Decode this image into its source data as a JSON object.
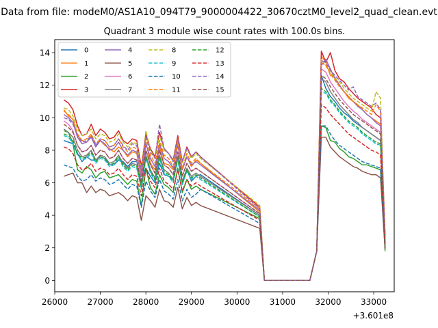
{
  "chart_data": {
    "type": "line",
    "suptitle": "Data from file: modeM0/AS1A10_094T79_9000004422_30670cztM0_level2_quad_clean.evt",
    "title": "Quadrant 3 module wise count rates with 100.0s bins.",
    "xlabel": "",
    "ylabel": "",
    "offset_text": "+3.601e8",
    "xlim": [
      26000,
      33450
    ],
    "ylim": [
      -0.7,
      14.8
    ],
    "xticks": [
      26000,
      27000,
      28000,
      29000,
      30000,
      31000,
      32000,
      33000
    ],
    "xtick_labels": [
      "26000",
      "27000",
      "28000",
      "29000",
      "30000",
      "31000",
      "32000",
      "33000"
    ],
    "yticks": [
      0,
      2,
      4,
      6,
      8,
      10,
      12,
      14
    ],
    "ytick_labels": [
      "0",
      "2",
      "4",
      "6",
      "8",
      "10",
      "12",
      "14"
    ],
    "legend_loc": "upper-left",
    "grid": false,
    "x_start": 26200,
    "x_step": 100,
    "gap": {
      "drop_from": 30500,
      "zero_start": 30600,
      "zero_end": 31650,
      "rise_to": 31850
    },
    "series": [
      {
        "name": "0",
        "color": "#1f77b4",
        "dashed": false,
        "pre": [
          8.6,
          8.5,
          8.4,
          7.8,
          7.3,
          7.6,
          7.4,
          7.4,
          7.6,
          7.5,
          7.1,
          7.1,
          7.4,
          7.3,
          7.0,
          7.3,
          7.3,
          6.1,
          6.9,
          6.4,
          6.0,
          7.2,
          6.5,
          6.4,
          6.2,
          7.6,
          5.9,
          6.8,
          6.1,
          6.4,
          6.5
        ],
        "pre_end": 4.0,
        "post": [
          12.6,
          11.8,
          11.3,
          11.0,
          10.6,
          10.3,
          10.1,
          9.8,
          9.6,
          9.4,
          9.2,
          9.0,
          8.8,
          8.6
        ],
        "post_end": 2.0
      },
      {
        "name": "1",
        "color": "#ff7f0e",
        "dashed": false,
        "pre": [
          10.5,
          10.1,
          9.9,
          8.9,
          8.6,
          8.5,
          8.9,
          8.3,
          8.6,
          8.3,
          8.1,
          7.9,
          8.2,
          8.0,
          7.6,
          7.9,
          7.8,
          6.4,
          8.5,
          7.2,
          6.8,
          8.2,
          7.2,
          7.1,
          6.8,
          8.4,
          6.8,
          7.6,
          7.0,
          7.4,
          7.2
        ],
        "pre_end": 4.2,
        "post": [
          13.8,
          13.4,
          12.6,
          12.5,
          12.0,
          11.6,
          11.2,
          11.0,
          10.8,
          10.5,
          10.2,
          10.0,
          9.8,
          9.6
        ],
        "post_end": 2.6
      },
      {
        "name": "2",
        "color": "#2ca02c",
        "dashed": false,
        "pre": [
          9.2,
          9.1,
          8.4,
          6.8,
          6.6,
          7.0,
          6.8,
          6.3,
          6.6,
          6.7,
          6.3,
          6.4,
          6.5,
          6.2,
          5.9,
          6.2,
          6.1,
          4.6,
          6.9,
          5.7,
          5.3,
          6.5,
          5.9,
          5.7,
          5.4,
          6.9,
          5.4,
          6.2,
          5.6,
          5.8,
          5.6
        ],
        "pre_end": 3.8,
        "post": [
          9.5,
          9.4,
          8.6,
          8.5,
          8.1,
          7.9,
          7.6,
          7.5,
          7.3,
          7.1,
          7.1,
          7.0,
          6.9,
          6.8
        ],
        "post_end": 1.8
      },
      {
        "name": "3",
        "color": "#d62728",
        "dashed": false,
        "pre": [
          11.1,
          10.9,
          10.5,
          9.5,
          8.9,
          9.0,
          9.6,
          8.9,
          9.3,
          9.1,
          8.7,
          8.8,
          9.2,
          8.6,
          8.4,
          8.7,
          8.6,
          7.0,
          9.0,
          8.1,
          7.6,
          9.1,
          8.1,
          7.8,
          7.4,
          8.9,
          7.3,
          8.2,
          7.6,
          7.9,
          7.6
        ],
        "pre_end": 4.5,
        "post": [
          14.1,
          13.4,
          14.0,
          12.9,
          12.4,
          12.2,
          11.8,
          11.5,
          11.2,
          11.0,
          10.8,
          10.6,
          10.2,
          10.0
        ],
        "post_end": 2.8
      },
      {
        "name": "4",
        "color": "#9467bd",
        "dashed": false,
        "pre": [
          10.2,
          10.0,
          9.7,
          8.8,
          8.4,
          8.5,
          8.8,
          8.2,
          8.6,
          8.4,
          8.0,
          8.1,
          8.5,
          8.0,
          7.7,
          8.0,
          7.9,
          6.4,
          8.4,
          7.5,
          7.0,
          8.4,
          7.5,
          7.3,
          6.9,
          8.3,
          6.8,
          7.6,
          7.1,
          7.3,
          7.1
        ],
        "pre_end": 4.3,
        "post": [
          13.2,
          13.6,
          13.0,
          12.4,
          12.0,
          11.6,
          11.3,
          11.0,
          10.7,
          10.5,
          10.2,
          10.0,
          9.7,
          9.5
        ],
        "post_end": 2.4
      },
      {
        "name": "5",
        "color": "#8c564b",
        "dashed": false,
        "pre": [
          6.4,
          6.5,
          6.6,
          6.0,
          6.0,
          5.4,
          5.8,
          5.4,
          5.6,
          5.5,
          5.2,
          5.3,
          5.4,
          5.2,
          4.9,
          5.2,
          5.1,
          3.7,
          5.2,
          4.9,
          4.5,
          5.6,
          4.9,
          4.8,
          4.5,
          5.7,
          4.4,
          5.1,
          4.6,
          4.8,
          4.6
        ],
        "pre_end": 3.2,
        "post": [
          8.8,
          8.8,
          8.2,
          7.9,
          7.6,
          7.4,
          7.2,
          7.0,
          6.9,
          6.7,
          6.6,
          6.5,
          6.5,
          6.3
        ],
        "post_end": 1.9
      },
      {
        "name": "6",
        "color": "#e377c2",
        "dashed": false,
        "pre": [
          9.8,
          9.6,
          9.2,
          8.3,
          7.9,
          8.0,
          8.3,
          7.7,
          8.0,
          7.9,
          7.5,
          7.6,
          8.0,
          7.5,
          7.2,
          7.5,
          7.4,
          6.0,
          8.0,
          7.1,
          6.6,
          8.0,
          7.1,
          6.9,
          6.5,
          7.9,
          6.4,
          7.2,
          6.7,
          6.9,
          6.7
        ],
        "pre_end": 4.1,
        "post": [
          13.0,
          12.8,
          12.2,
          11.8,
          11.4,
          11.0,
          10.7,
          10.4,
          10.2,
          9.9,
          9.7,
          9.5,
          9.3,
          9.1
        ],
        "post_end": 2.2
      },
      {
        "name": "7",
        "color": "#7f7f7f",
        "dashed": false,
        "pre": [
          9.3,
          9.1,
          8.8,
          8.0,
          7.6,
          7.7,
          8.0,
          7.4,
          7.7,
          7.6,
          7.2,
          7.3,
          7.7,
          7.2,
          6.9,
          7.2,
          7.1,
          5.8,
          7.7,
          6.8,
          6.3,
          7.7,
          6.8,
          6.6,
          6.2,
          7.6,
          6.1,
          6.9,
          6.4,
          6.6,
          6.4
        ],
        "pre_end": 4.0,
        "post": [
          12.4,
          12.2,
          11.6,
          11.2,
          10.8,
          10.5,
          10.2,
          9.9,
          9.7,
          9.4,
          9.2,
          9.0,
          8.8,
          8.6
        ],
        "post_end": 2.2
      },
      {
        "name": "8",
        "color": "#bcbd22",
        "dashed": true,
        "pre": [
          10.6,
          10.5,
          10.1,
          9.3,
          8.9,
          9.0,
          9.3,
          8.7,
          9.0,
          8.9,
          8.5,
          8.6,
          9.0,
          8.5,
          8.2,
          8.5,
          8.4,
          6.8,
          9.2,
          8.0,
          7.5,
          8.9,
          8.0,
          7.8,
          7.3,
          8.7,
          7.2,
          8.1,
          7.5,
          7.8,
          7.5
        ],
        "pre_end": 4.6,
        "post": [
          13.6,
          13.2,
          12.8,
          12.4,
          12.2,
          11.8,
          11.5,
          11.2,
          11.0,
          10.8,
          10.6,
          10.4,
          11.6,
          11.2
        ],
        "post_end": 2.6
      },
      {
        "name": "9",
        "color": "#17becf",
        "dashed": true,
        "pre": [
          8.9,
          8.8,
          8.4,
          7.7,
          7.4,
          7.5,
          7.8,
          7.2,
          7.5,
          7.4,
          7.0,
          7.1,
          7.5,
          7.0,
          6.7,
          7.0,
          6.9,
          5.6,
          7.5,
          6.6,
          6.1,
          7.5,
          6.6,
          6.4,
          6.0,
          7.4,
          5.9,
          6.7,
          6.2,
          6.4,
          6.2
        ],
        "pre_end": 3.9,
        "post": [
          11.6,
          11.5,
          11.0,
          10.7,
          10.3,
          10.0,
          9.7,
          9.5,
          9.3,
          9.0,
          8.8,
          8.6,
          8.4,
          8.3
        ],
        "post_end": 2.1
      },
      {
        "name": "10",
        "color": "#1f77b4",
        "dashed": true,
        "pre": [
          7.1,
          7.0,
          6.9,
          6.4,
          6.1,
          6.2,
          6.5,
          6.1,
          6.3,
          6.2,
          5.9,
          6.0,
          6.2,
          5.9,
          5.6,
          5.9,
          5.8,
          4.5,
          6.1,
          5.5,
          5.1,
          6.2,
          5.5,
          5.3,
          5.0,
          6.2,
          4.9,
          5.6,
          5.1,
          5.3,
          5.6
        ],
        "pre_end": 3.5,
        "post": [
          9.5,
          9.5,
          9.0,
          8.6,
          8.3,
          8.1,
          7.9,
          7.7,
          7.5,
          7.3,
          7.2,
          7.1,
          7.0,
          6.9
        ],
        "post_end": 1.9
      },
      {
        "name": "11",
        "color": "#ff7f0e",
        "dashed": true,
        "pre": [
          10.4,
          10.2,
          9.9,
          9.0,
          8.6,
          8.7,
          9.0,
          8.4,
          8.7,
          8.6,
          8.2,
          8.3,
          8.7,
          8.2,
          7.9,
          8.2,
          8.1,
          6.6,
          8.8,
          7.7,
          7.2,
          8.6,
          7.7,
          7.5,
          7.0,
          8.5,
          6.9,
          7.8,
          7.2,
          7.5,
          7.2
        ],
        "pre_end": 4.4,
        "post": [
          13.4,
          13.2,
          12.7,
          12.3,
          11.9,
          11.6,
          11.3,
          11.0,
          10.8,
          10.6,
          10.4,
          10.2,
          10.8,
          10.4
        ],
        "post_end": 2.5
      },
      {
        "name": "12",
        "color": "#2ca02c",
        "dashed": true,
        "pre": [
          9.0,
          8.9,
          8.6,
          7.8,
          7.5,
          7.6,
          7.9,
          7.3,
          7.6,
          7.5,
          7.1,
          7.2,
          7.6,
          7.1,
          6.8,
          7.1,
          7.0,
          5.7,
          7.6,
          6.7,
          6.2,
          7.6,
          6.7,
          6.5,
          6.1,
          7.5,
          6.0,
          6.8,
          6.3,
          6.5,
          6.3
        ],
        "pre_end": 3.9,
        "post": [
          11.8,
          11.6,
          11.1,
          10.8,
          10.4,
          10.1,
          9.8,
          9.6,
          9.4,
          9.1,
          8.9,
          8.7,
          8.5,
          8.4
        ],
        "post_end": 2.1
      },
      {
        "name": "13",
        "color": "#d62728",
        "dashed": true,
        "pre": [
          8.2,
          8.1,
          7.8,
          7.1,
          6.8,
          6.9,
          7.2,
          6.7,
          6.9,
          6.8,
          6.5,
          6.6,
          6.9,
          6.5,
          6.2,
          6.5,
          6.4,
          5.2,
          6.9,
          6.1,
          5.7,
          6.9,
          6.1,
          5.9,
          5.6,
          6.8,
          5.5,
          6.2,
          5.8,
          6.0,
          5.8
        ],
        "pre_end": 3.7,
        "post": [
          10.8,
          10.6,
          10.2,
          9.9,
          9.6,
          9.3,
          9.0,
          8.8,
          8.6,
          8.4,
          8.2,
          8.0,
          7.9,
          7.7
        ],
        "post_end": 2.0
      },
      {
        "name": "14",
        "color": "#9467bd",
        "dashed": true,
        "pre": [
          10.0,
          9.9,
          9.6,
          8.9,
          8.5,
          8.6,
          8.9,
          8.3,
          8.7,
          8.6,
          8.2,
          8.3,
          8.7,
          8.3,
          8.0,
          8.4,
          8.3,
          6.7,
          8.9,
          7.9,
          7.5,
          9.6,
          8.1,
          7.8,
          7.3,
          8.7,
          7.3,
          8.1,
          7.6,
          7.9,
          7.6
        ],
        "pre_end": 4.4,
        "post": [
          13.5,
          13.4,
          12.9,
          12.6,
          12.3,
          12.0,
          11.7,
          11.9,
          11.3,
          11.1,
          10.9,
          10.7,
          10.9,
          10.5
        ],
        "post_end": 2.7
      },
      {
        "name": "15",
        "color": "#8c564b",
        "dashed": true,
        "pre": [
          9.6,
          9.4,
          9.1,
          8.3,
          7.9,
          8.0,
          8.3,
          7.7,
          8.0,
          7.9,
          7.5,
          7.6,
          8.0,
          7.5,
          7.2,
          7.5,
          7.4,
          6.0,
          8.0,
          7.1,
          6.6,
          8.0,
          7.1,
          6.9,
          6.5,
          7.9,
          6.4,
          7.2,
          6.7,
          6.9,
          6.7
        ],
        "pre_end": 4.1,
        "post": [
          12.6,
          12.4,
          11.9,
          11.5,
          11.1,
          10.8,
          10.5,
          10.2,
          10.0,
          9.8,
          9.6,
          9.4,
          9.2,
          9.0
        ],
        "post_end": 2.2
      }
    ]
  }
}
